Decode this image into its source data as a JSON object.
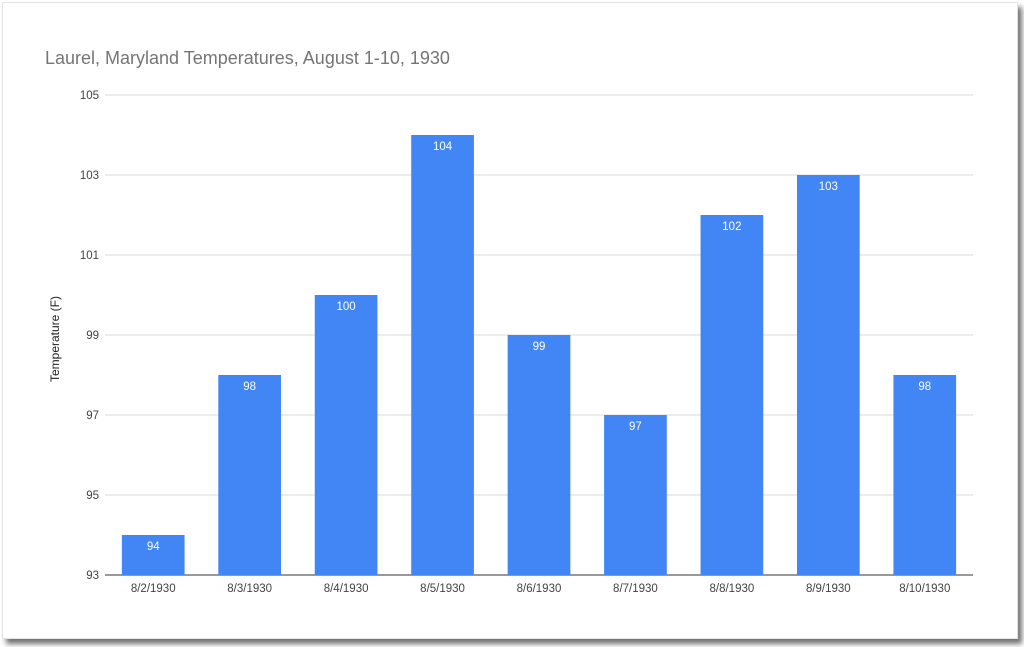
{
  "chart_data": {
    "type": "bar",
    "title": "Laurel, Maryland Temperatures, August 1-10, 1930",
    "xlabel": "",
    "ylabel": "Temperature (F)",
    "ylim": [
      93,
      105
    ],
    "yticks": [
      93,
      95,
      97,
      99,
      101,
      103,
      105
    ],
    "grid": true,
    "categories": [
      "8/2/1930",
      "8/3/1930",
      "8/4/1930",
      "8/5/1930",
      "8/6/1930",
      "8/7/1930",
      "8/8/1930",
      "8/9/1930",
      "8/10/1930"
    ],
    "values": [
      94,
      98,
      100,
      104,
      99,
      97,
      102,
      103,
      98
    ],
    "data_labels": [
      "94",
      "98",
      "100",
      "104",
      "99",
      "97",
      "102",
      "103",
      "98"
    ],
    "bar_color": "#4285f4",
    "grid_color": "#d9d9d9"
  }
}
